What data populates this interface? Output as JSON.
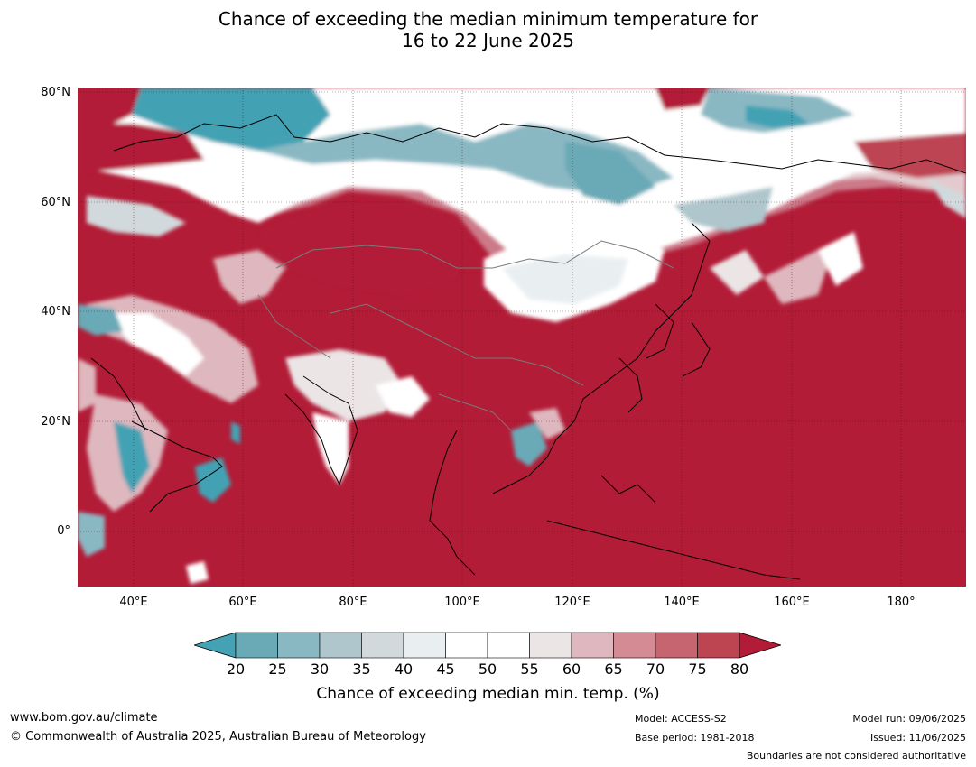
{
  "title_line1": "Chance of exceeding the median minimum temperature for",
  "title_line2": "16 to 22 June 2025",
  "lat_labels": [
    "80°N",
    "60°N",
    "40°N",
    "20°N",
    "0°"
  ],
  "lon_labels": [
    "40°E",
    "60°E",
    "80°E",
    "100°E",
    "120°E",
    "140°E",
    "160°E",
    "180°"
  ],
  "colorbar": {
    "ticks": [
      "20",
      "25",
      "30",
      "35",
      "40",
      "45",
      "50",
      "55",
      "60",
      "65",
      "70",
      "75",
      "80"
    ],
    "label": "Chance of exceeding median min. temp. (%)",
    "colors": [
      "#43a2b4",
      "#6aa9b6",
      "#89b8c3",
      "#aec6cc",
      "#d1d9dc",
      "#e9eff1",
      "#ffffff",
      "#ffffff",
      "#ebe5e6",
      "#deb8be",
      "#d48b94",
      "#c6646f",
      "#bd4552",
      "#b21c37"
    ]
  },
  "footer": {
    "url": "www.bom.gov.au/climate",
    "copyright": "© Commonwealth of Australia 2025, Australian Bureau of Meteorology",
    "model": "Model: ACCESS-S2",
    "base_period": "Base period: 1981-2018",
    "model_run": "Model run: 09/06/2025",
    "issued": "Issued: 11/06/2025",
    "disclaimer": "Boundaries are not considered authoritative"
  }
}
